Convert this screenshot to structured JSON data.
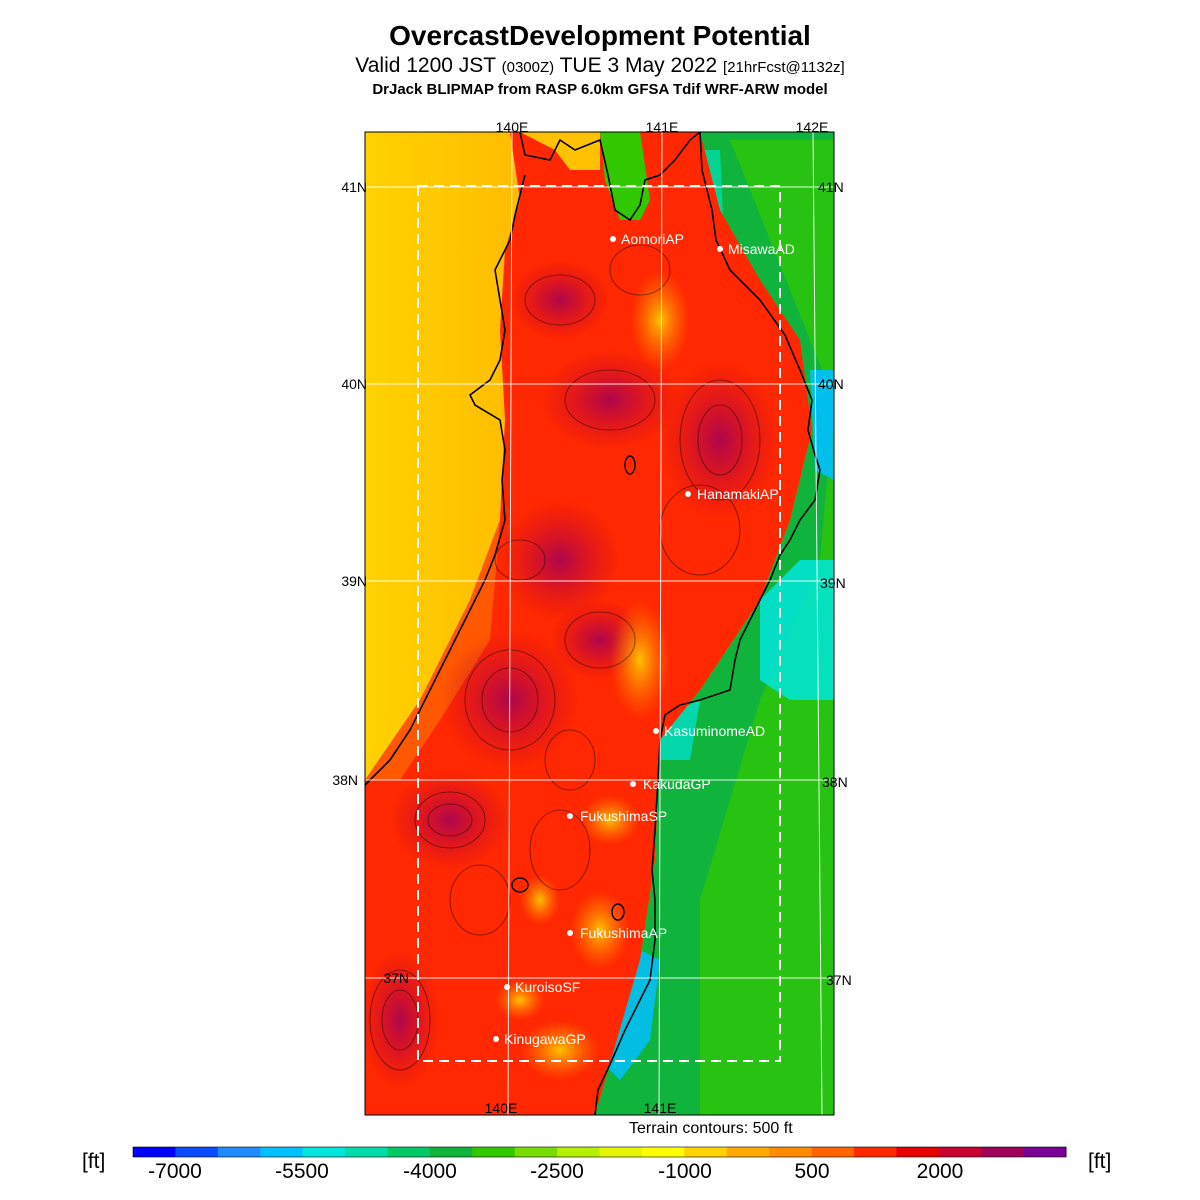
{
  "header": {
    "title": "OvercastDevelopment Potential",
    "valid_main": "Valid 1200 JST",
    "valid_utc": "(0300Z)",
    "valid_date": "TUE 3 May 2022",
    "forecast": "[21hrFcst@1132z]",
    "credit": "DrJack BLIPMAP from RASP 6.0km GFSA Tdif WRF-ARW model"
  },
  "map": {
    "lon_labels_top": [
      "140E",
      "141E",
      "142E"
    ],
    "lon_labels_bottom": [
      "140E",
      "141E"
    ],
    "lat_labels_left": [
      "41N",
      "40N",
      "39N",
      "38N",
      "37N"
    ],
    "lat_labels_right": [
      "41N",
      "40N",
      "39N",
      "38N",
      "37N"
    ],
    "stations": [
      {
        "name": "AomoriAP"
      },
      {
        "name": "MisawaAD"
      },
      {
        "name": "HanamakiAP"
      },
      {
        "name": "KasuminomeAD"
      },
      {
        "name": "KakudaGP"
      },
      {
        "name": "FukushimaSP"
      },
      {
        "name": "FukushimaAP"
      },
      {
        "name": "KuroisoSF"
      },
      {
        "name": "KinugawaGP"
      }
    ],
    "terrain_note": "Terrain contours: 500 ft"
  },
  "colorbar": {
    "unit_left": "[ft]",
    "unit_right": "[ft]",
    "tick_labels": [
      "-7000",
      "-5500",
      "-4000",
      "-2500",
      "-1000",
      "500",
      "2000"
    ],
    "colors": [
      "#0000ff",
      "#0a4bff",
      "#1e8cff",
      "#00c0ff",
      "#00e6dc",
      "#00dcaa",
      "#00c864",
      "#10b43c",
      "#32c800",
      "#78dc00",
      "#b4f000",
      "#e6f500",
      "#ffff00",
      "#ffd200",
      "#ffaa00",
      "#ff8c00",
      "#ff6400",
      "#ff2800",
      "#e60000",
      "#c80032",
      "#a0005a",
      "#780096"
    ]
  }
}
